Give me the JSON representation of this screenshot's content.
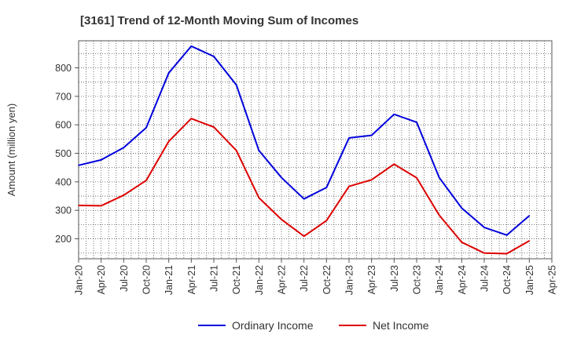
{
  "chart_data": {
    "type": "line",
    "title": "[3161]  Trend of 12-Month Moving Sum of Incomes",
    "xlabel": "",
    "ylabel": "Amount (million yen)",
    "ylim": [
      130,
      895
    ],
    "yticks": [
      200,
      300,
      400,
      500,
      600,
      700,
      800
    ],
    "grid": true,
    "legend": "bottom-center",
    "x_tick_labels": [
      "Jan-20",
      "Apr-20",
      "Jul-20",
      "Oct-20",
      "Jan-21",
      "Apr-21",
      "Jul-21",
      "Oct-21",
      "Jan-22",
      "Apr-22",
      "Jul-22",
      "Oct-22",
      "Jan-23",
      "Apr-23",
      "Jul-23",
      "Oct-23",
      "Jan-24",
      "Apr-24",
      "Jul-24",
      "Oct-24",
      "Jan-25",
      "Apr-25"
    ],
    "categories": [
      "Jan-20",
      "Apr-20",
      "Jul-20",
      "Oct-20",
      "Jan-21",
      "Apr-21",
      "Jul-21",
      "Oct-21",
      "Jan-22",
      "Apr-22",
      "Jul-22",
      "Oct-22",
      "Jan-23",
      "Apr-23",
      "Jul-23",
      "Oct-23",
      "Jan-24",
      "Apr-24",
      "Jul-24",
      "Oct-24",
      "Jan-25"
    ],
    "series": [
      {
        "name": "Ordinary Income",
        "color": "#0000dd",
        "values": [
          458,
          477,
          520,
          590,
          782,
          876,
          840,
          740,
          510,
          415,
          340,
          380,
          554,
          563,
          637,
          609,
          415,
          308,
          240,
          213,
          281
        ]
      },
      {
        "name": "Net Income",
        "color": "#dd0000",
        "values": [
          317,
          316,
          353,
          405,
          542,
          622,
          592,
          510,
          344,
          268,
          209,
          264,
          384,
          407,
          462,
          414,
          283,
          188,
          150,
          148,
          193
        ]
      }
    ]
  }
}
